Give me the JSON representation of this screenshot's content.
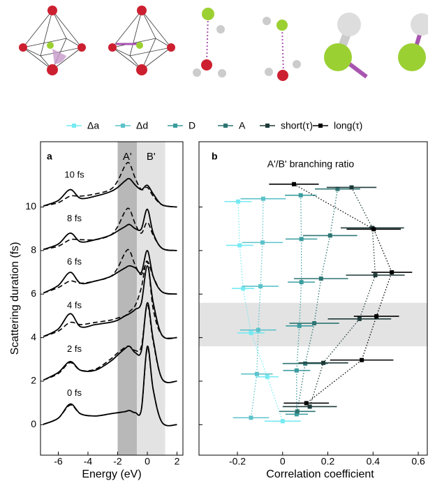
{
  "chart_data": [
    {
      "type": "line",
      "panel_label": "a",
      "xlabel": "Energy (eV)",
      "ylabel": "Scattering duration (fs)",
      "xlim": [
        -7.2,
        2.4
      ],
      "xticks": [
        -6,
        -4,
        -2,
        0,
        2
      ],
      "ylim": [
        -1.4,
        13
      ],
      "yticks": [
        0,
        2,
        4,
        6,
        8,
        10
      ],
      "regions": [
        {
          "label": "A'",
          "range": [
            -2,
            -0.7
          ],
          "color": "#b8b8b8"
        },
        {
          "label": "B'",
          "range": [
            -0.7,
            1.2
          ],
          "color": "#e3e3e3"
        }
      ],
      "x": [
        -7,
        -6,
        -5.2,
        -4.5,
        -3.5,
        -2.5,
        -2,
        -1.5,
        -1.2,
        -0.8,
        -0.4,
        0,
        0.4,
        1,
        2
      ],
      "series": [
        {
          "name": "0 fs",
          "color": "#000000",
          "values": [
            0.02,
            0.3,
            0.95,
            0.5,
            0.4,
            0.5,
            0.55,
            0.6,
            0.65,
            0.55,
            0.7,
            3.6,
            1.6,
            0.1,
            0
          ],
          "values_dashed": [
            0.02,
            0.3,
            0.9,
            0.5,
            0.4,
            0.5,
            0.55,
            0.6,
            0.65,
            0.55,
            0.7,
            3.5,
            1.6,
            0.1,
            0
          ]
        },
        {
          "name": "2 fs",
          "color": "#000000",
          "values": [
            2.05,
            2.4,
            2.9,
            2.5,
            2.5,
            2.9,
            3.2,
            3.5,
            3.6,
            3.3,
            3.4,
            5.6,
            3.9,
            2.1,
            2
          ],
          "values_dashed": [
            2.05,
            2.35,
            2.85,
            2.5,
            2.55,
            3,
            3.3,
            3.55,
            3.6,
            3.4,
            3.6,
            5.5,
            3.8,
            2.1,
            2
          ]
        },
        {
          "name": "4 fs",
          "color": "#000000",
          "values": [
            4.05,
            4.4,
            5.1,
            4.5,
            4.6,
            4.7,
            4.8,
            5,
            5.1,
            5.3,
            5.6,
            7.3,
            5.6,
            4.1,
            4
          ],
          "values_dashed": [
            4.05,
            4.3,
            4.7,
            4.6,
            4.7,
            4.8,
            4.9,
            5,
            5.2,
            5.5,
            6.3,
            7.5,
            5.3,
            4.1,
            4
          ]
        },
        {
          "name": "6 fs",
          "color": "#000000",
          "values": [
            6.05,
            6.4,
            7,
            6.5,
            6.6,
            6.8,
            7,
            7.2,
            7.3,
            7.2,
            7,
            8,
            6.8,
            6.1,
            6
          ],
          "values_dashed": [
            6.05,
            6.3,
            6.6,
            6.5,
            6.6,
            6.8,
            7.2,
            7.9,
            8,
            7.3,
            6.9,
            7.5,
            6.8,
            6.1,
            6
          ]
        },
        {
          "name": "8 fs",
          "color": "#000000",
          "values": [
            8.05,
            8.3,
            8.8,
            8.4,
            8.5,
            8.7,
            8.9,
            9.1,
            9.2,
            9,
            9,
            9.9,
            8.8,
            8.1,
            8
          ],
          "values_dashed": [
            8.05,
            8.2,
            8.5,
            8.5,
            8.5,
            8.7,
            9.1,
            9.8,
            9.9,
            9.2,
            8.8,
            9.3,
            8.7,
            8.1,
            8
          ]
        },
        {
          "name": "10 fs",
          "color": "#000000",
          "values": [
            10.05,
            10.3,
            10.8,
            10.4,
            10.5,
            10.7,
            10.9,
            11.2,
            11.3,
            11,
            10.8,
            11,
            10.6,
            10.1,
            10
          ],
          "values_dashed": [
            10.05,
            10.2,
            10.5,
            10.5,
            10.6,
            10.8,
            11.2,
            11.9,
            12,
            11.3,
            10.8,
            10.9,
            10.5,
            10.1,
            10
          ]
        }
      ]
    },
    {
      "type": "errorbar",
      "panel_label": "b",
      "title": "A'/B' branching ratio",
      "xlabel": "Correlation coefficient",
      "xlim": [
        -0.37,
        0.64
      ],
      "xticks": [
        -0.2,
        0,
        0.2,
        0.4,
        0.6
      ],
      "ylim": [
        -1.4,
        13
      ],
      "yticks": [
        0,
        2,
        4,
        6,
        8,
        10
      ],
      "band": [
        3.6,
        5.6
      ],
      "band_color": "#e3e3e3",
      "series": [
        {
          "name": "Δa",
          "color": "#74eaf2",
          "values": [
            -0.197,
            -0.19,
            -0.175,
            -0.14,
            -0.068,
            0
          ],
          "y": [
            10.25,
            8.24,
            6.26,
            4.22,
            2.2,
            0.16
          ],
          "errors": [
            0.06,
            0.06,
            0.05,
            0.06,
            0.05,
            0.08
          ]
        },
        {
          "name": "Δd",
          "color": "#5cc2ca",
          "values": [
            -0.086,
            -0.089,
            -0.098,
            -0.108,
            -0.114,
            -0.14
          ],
          "y": [
            10.38,
            8.37,
            6.36,
            4.35,
            2.33,
            0.32
          ],
          "errors": [
            0.1,
            0.09,
            0.08,
            0.08,
            0.07,
            0.08
          ]
        },
        {
          "name": "D",
          "color": "#3b9c9e",
          "values": [
            0.08,
            0.083,
            0.083,
            0.074,
            0.062,
            0.062
          ],
          "y": [
            10.54,
            8.53,
            6.55,
            4.54,
            2.49,
            0.48
          ],
          "errors": [
            0.07,
            0.07,
            0.06,
            0.06,
            0.06,
            0.05
          ]
        },
        {
          "name": "A",
          "color": "#2d7573",
          "values": [
            0.243,
            0.21,
            0.17,
            0.14,
            0.1,
            0.065
          ],
          "y": [
            10.83,
            8.69,
            6.71,
            4.66,
            2.81,
            0.61
          ],
          "errors": [
            0.1,
            0.12,
            0.12,
            0.11,
            0.1,
            0.08
          ]
        },
        {
          "name": "short(τ)",
          "color": "#1d3a39",
          "values": [
            0.305,
            0.397,
            0.41,
            0.34,
            0.18,
            0.12
          ],
          "y": [
            10.9,
            9.04,
            6.87,
            4.86,
            2.84,
            0.83
          ],
          "errors": [
            0.11,
            0.14,
            0.13,
            0.14,
            0.11,
            0.12
          ]
        },
        {
          "name": "long(τ)",
          "color": "#000000",
          "values": [
            0.05,
            0.403,
            0.483,
            0.415,
            0.35,
            0.105
          ],
          "y": [
            11.05,
            8.98,
            7,
            4.98,
            2.97,
            0.99
          ],
          "errors": [
            0.11,
            0.12,
            0.09,
            0.1,
            0.14,
            0.1
          ]
        }
      ]
    }
  ]
}
